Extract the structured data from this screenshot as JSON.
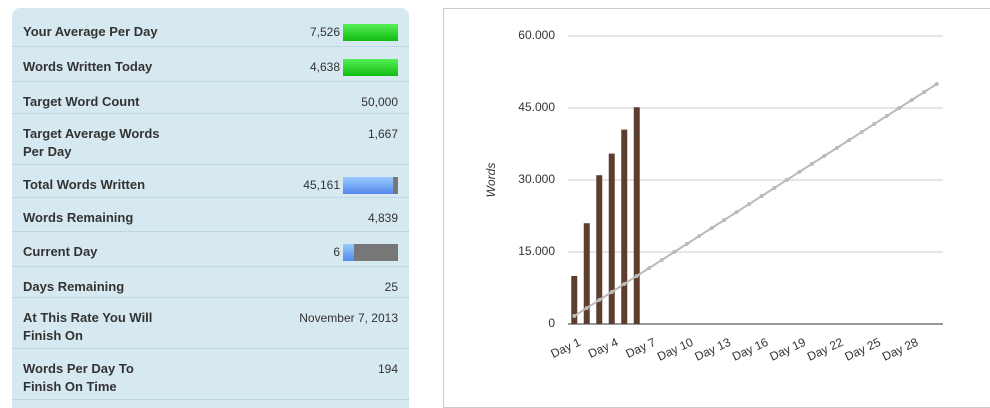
{
  "panel": {
    "rows": [
      {
        "label": "Your Average Per Day",
        "value": "7,526"
      },
      {
        "label": "Words Written Today",
        "value": "4,638"
      },
      {
        "label": "Target Word Count",
        "value": "50,000"
      },
      {
        "label": "Target Average Words Per Day",
        "value": "1,667"
      },
      {
        "label": "Total Words Written",
        "value": "45,161"
      },
      {
        "label": "Words Remaining",
        "value": "4,839"
      },
      {
        "label": "Current Day",
        "value": "6"
      },
      {
        "label": "Days Remaining",
        "value": "25"
      },
      {
        "label": "At This Rate You Will Finish On",
        "value": "November 7, 2013"
      },
      {
        "label": "Words Per Day To Finish On Time",
        "value": "194"
      }
    ]
  },
  "chart_data": {
    "type": "bar",
    "y_label": "Words",
    "categories": [
      "Day 1",
      null,
      null,
      "Day 4",
      null,
      null,
      "Day 7",
      null,
      null,
      "Day 10",
      null,
      null,
      "Day 13",
      null,
      null,
      "Day 16",
      null,
      null,
      "Day 19",
      null,
      null,
      "Day 22",
      null,
      null,
      "Day 25",
      null,
      null,
      "Day 28",
      null,
      null
    ],
    "series": [
      {
        "type": "bar",
        "color": "#5c3d2e",
        "values": [
          10000,
          21000,
          31000,
          35500,
          40500,
          45161,
          null,
          null,
          null,
          null,
          null,
          null,
          null,
          null,
          null,
          null,
          null,
          null,
          null,
          null,
          null,
          null,
          null,
          null,
          null,
          null,
          null,
          null,
          null,
          null
        ]
      },
      {
        "type": "line",
        "color": "#bbbbbb",
        "values": [
          1667,
          3333,
          5000,
          6667,
          8333,
          10000,
          11667,
          13333,
          15000,
          16667,
          18333,
          20000,
          21667,
          23333,
          25000,
          26667,
          28333,
          30000,
          31667,
          33333,
          35000,
          36667,
          38333,
          40000,
          41667,
          43333,
          45000,
          46667,
          48333,
          50000
        ]
      }
    ],
    "ylim": [
      0,
      60000
    ],
    "yticks": [
      0,
      {
        "value": 15000,
        "label": "15.000"
      },
      {
        "value": 30000,
        "label": "30.000"
      },
      {
        "value": 45000,
        "label": "45.000"
      },
      {
        "value": 60000,
        "label": "60.000"
      }
    ],
    "grid": true
  }
}
